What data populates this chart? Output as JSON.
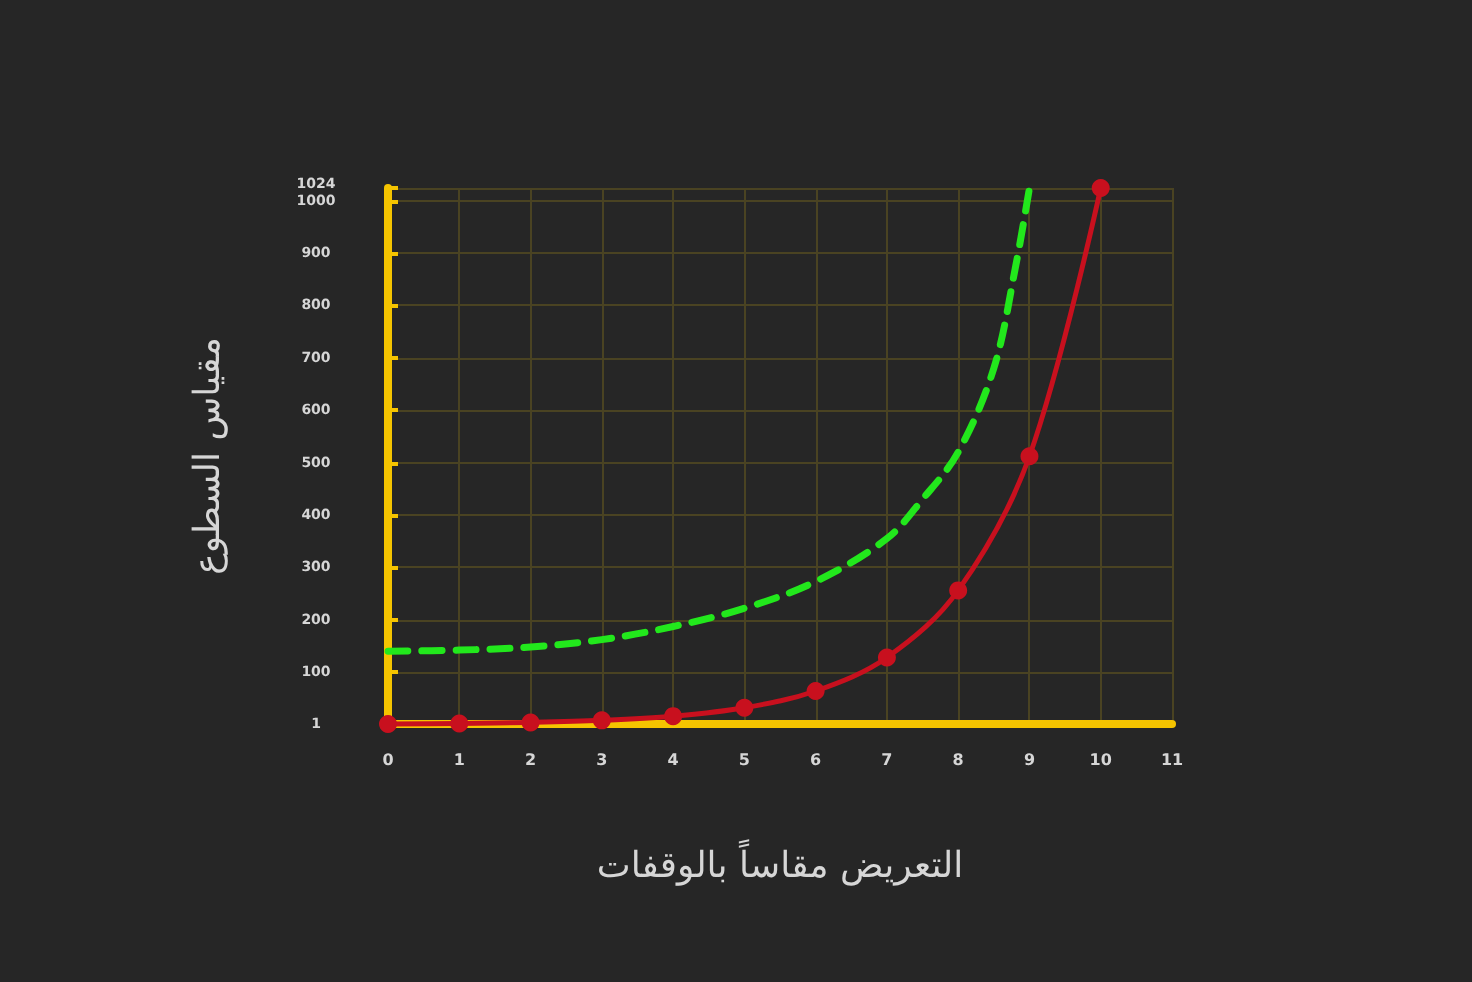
{
  "chart_data": {
    "type": "line",
    "xlabel": "التعريض مقاساً بالوقفات",
    "ylabel": "مقياس السطوع",
    "x": [
      0,
      1,
      2,
      3,
      4,
      5,
      6,
      7,
      8,
      9,
      10
    ],
    "series": [
      {
        "color": "#c8101e",
        "values": [
          1,
          2,
          4,
          8,
          16,
          32,
          64,
          128,
          256,
          512,
          1024
        ],
        "marker": "circle",
        "line_style": "solid"
      },
      {
        "color": "#22e81c",
        "x": [
          0,
          1,
          2,
          3,
          4,
          5,
          6,
          7,
          7.5,
          8,
          8.5,
          8.8,
          9
        ],
        "values": [
          140,
          142,
          148,
          162,
          187,
          222,
          273,
          355,
          430,
          520,
          680,
          870,
          1024
        ],
        "marker": "none",
        "line_style": "dashed"
      }
    ],
    "xlim": [
      0,
      11
    ],
    "xticks": [
      0,
      1,
      2,
      3,
      4,
      5,
      6,
      7,
      8,
      9,
      10,
      11
    ],
    "ylim": [
      1,
      1024
    ],
    "yticks": [
      1,
      100,
      200,
      300,
      400,
      500,
      600,
      700,
      800,
      900,
      1000,
      1024
    ],
    "grid": true
  }
}
